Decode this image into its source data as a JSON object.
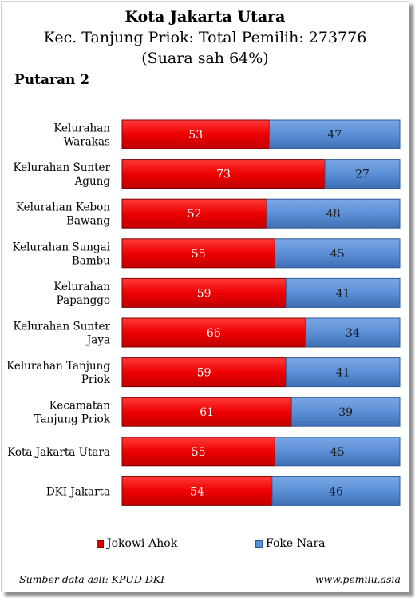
{
  "header": {
    "title": "Kota Jakarta Utara",
    "subtitle": "Kec. Tanjung Priok: Total Pemilih: 273776",
    "subtitle2": "(Suara sah 64%)",
    "round": "Putaran 2"
  },
  "footer": {
    "source": "Sumber data asli: KPUD DKI",
    "site": "www.pemilu.asia"
  },
  "colors": {
    "series1": "#ff0000",
    "series2": "#5b8fd6"
  },
  "chart_data": {
    "type": "bar",
    "orientation": "horizontal",
    "stacked": true,
    "xlim": [
      0,
      100
    ],
    "categories": [
      [
        "Kelurahan",
        "Warakas"
      ],
      [
        "Kelurahan Sunter",
        "Agung"
      ],
      [
        "Kelurahan Kebon",
        "Bawang"
      ],
      [
        "Kelurahan Sungai",
        "Bambu"
      ],
      [
        "Kelurahan",
        "Papanggo"
      ],
      [
        "Kelurahan Sunter",
        "Jaya"
      ],
      [
        "Kelurahan Tanjung",
        "Priok"
      ],
      [
        "Kecamatan",
        "Tanjung Priok"
      ],
      [
        "Kota Jakarta Utara"
      ],
      [
        "DKI Jakarta"
      ]
    ],
    "series": [
      {
        "name": "Jokowi-Ahok",
        "values": [
          53,
          73,
          52,
          55,
          59,
          66,
          59,
          61,
          55,
          54
        ]
      },
      {
        "name": "Foke-Nara",
        "values": [
          47,
          27,
          48,
          45,
          41,
          34,
          41,
          39,
          45,
          46
        ]
      }
    ],
    "legend": "bottom"
  }
}
